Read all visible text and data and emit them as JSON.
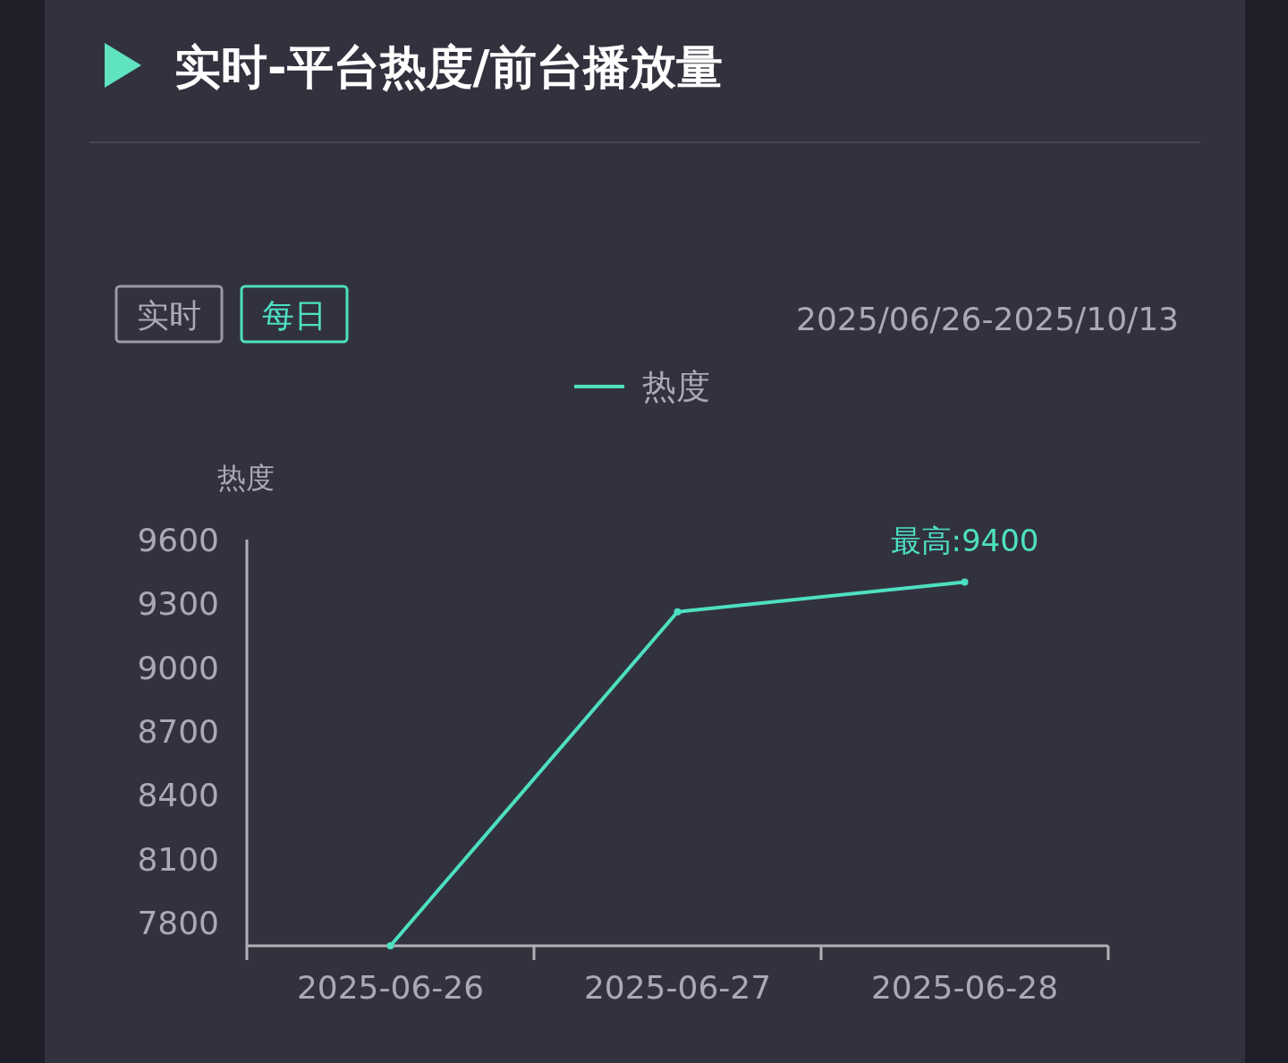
{
  "chart_data": {
    "type": "line",
    "title": "实时-平台热度/前台播放量",
    "subtitle": "2025/06/26-2025/10/13",
    "ylabel": "热度",
    "categories": [
      "2025-06-26",
      "2025-06-27",
      "2025-06-28"
    ],
    "series": [
      {
        "name": "热度",
        "color": "#4de0c0",
        "values": [
          7690,
          9260,
          9400
        ]
      }
    ],
    "ylim": [
      7690,
      9600
    ],
    "yticks": [
      7800,
      8100,
      8400,
      8700,
      9000,
      9300,
      9600
    ],
    "annotations": [
      "实时",
      "每日",
      {
        "text": "最高:9400",
        "x": "2025-06-28",
        "y": 9400
      }
    ],
    "legend": "top",
    "marker": "circle",
    "line_style": "solid",
    "grid": false
  }
}
